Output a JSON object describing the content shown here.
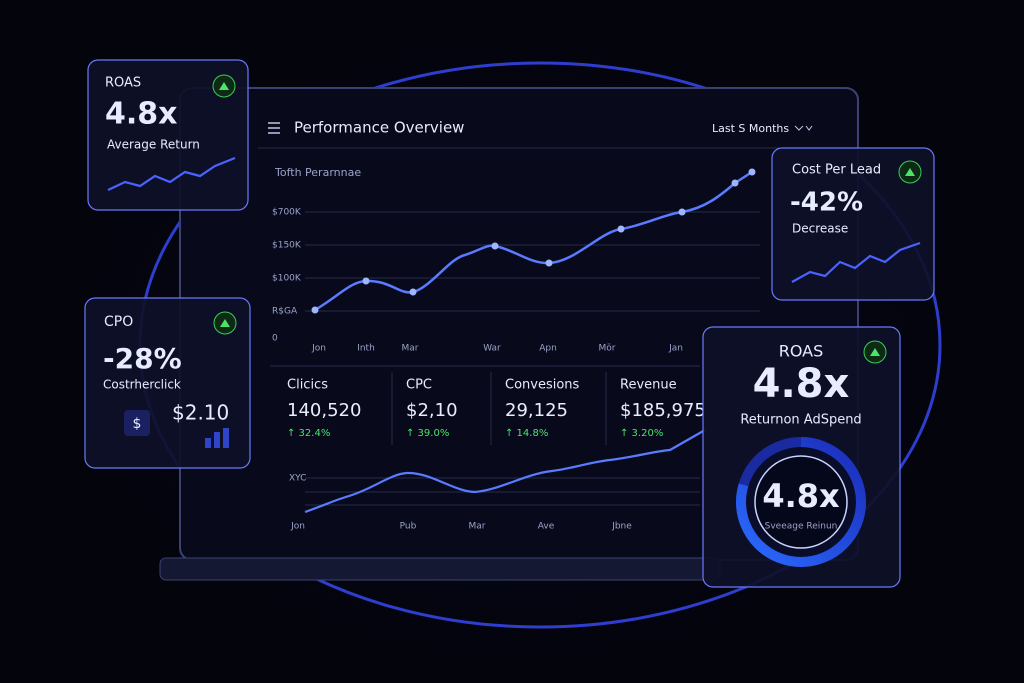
{
  "cards": {
    "roas_small": {
      "label": "ROAS",
      "value": "4.8x",
      "caption": "Average Return"
    },
    "cpo": {
      "label": "CPO",
      "value": "-28%",
      "caption": "Costrherclick",
      "icon": "$",
      "amount": "$2.10"
    },
    "cost_per_lead": {
      "label": "Cost Per Lead",
      "value": "-42%",
      "caption": "Decrease"
    },
    "roas_large": {
      "label": "ROAS",
      "value": "4.8x",
      "caption": "Returnon AdSpend",
      "gauge_value": "4.8x",
      "gauge_caption": "Sveeage Reinun"
    }
  },
  "panel": {
    "title": "Performance Overview",
    "range": "Last S Months",
    "chart_title": "Tofth Perarnnae",
    "y_labels": [
      "$700K",
      "$150K",
      "$100K",
      "R$GA",
      "0"
    ],
    "x_labels": [
      "Jon",
      "Inth",
      "Mar",
      "War",
      "Apn",
      "Mör",
      "Jan"
    ],
    "stats": [
      {
        "label": "Clicics",
        "value": "140,520",
        "change": "↑ 32.4%"
      },
      {
        "label": "CPC",
        "value": "$2,10",
        "change": "↑ 39.0%"
      },
      {
        "label": "Convesions",
        "value": "29,125",
        "change": "↑ 14.8%"
      },
      {
        "label": "Revenue",
        "value": "$185,975",
        "change": "↑ 3.20%"
      }
    ],
    "chart2": {
      "y_label": "XYC",
      "x_labels": [
        "Jon",
        "Pub",
        "Mar",
        "Ave",
        "Jbne"
      ]
    }
  }
}
